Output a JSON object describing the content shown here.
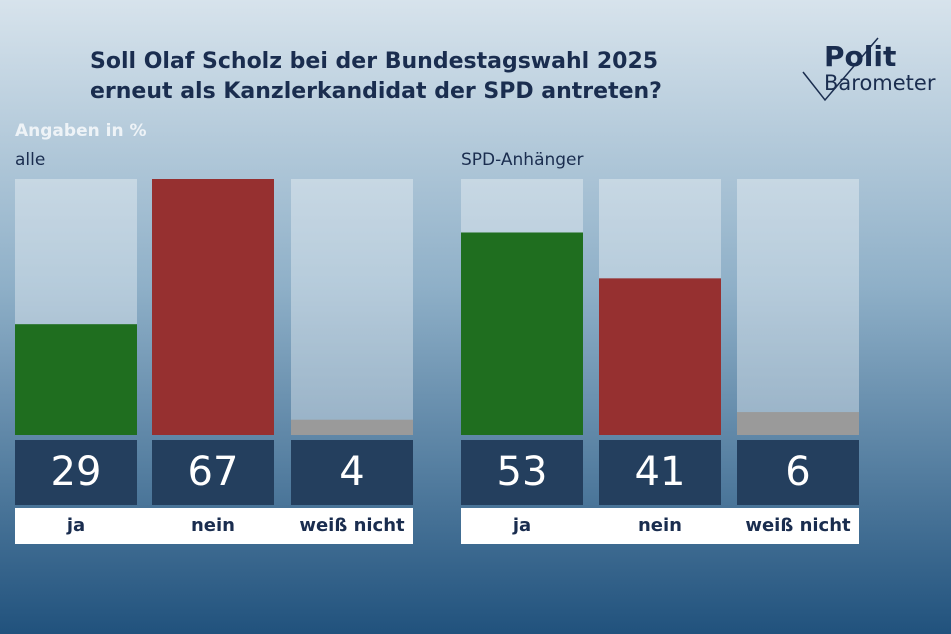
{
  "header": {
    "title": [
      "Soll Olaf Scholz bei der Bundestagswahl 2025",
      "erneut als Kanzlerkandidat der SPD antreten?"
    ],
    "note": "Angaben in %",
    "logo": [
      "Polit",
      "Barometer"
    ]
  },
  "chart_data": [
    {
      "type": "bar",
      "subtitle": "alle",
      "categories": [
        "ja",
        "nein",
        "weiß nicht"
      ],
      "values": [
        29,
        67,
        4
      ],
      "colors": [
        "#1f6e1f",
        "#963030",
        "#9a9a9a"
      ],
      "ylim": [
        0,
        67
      ]
    },
    {
      "type": "bar",
      "subtitle": "SPD-Anhänger",
      "categories": [
        "ja",
        "nein",
        "weiß nicht"
      ],
      "values": [
        53,
        41,
        6
      ],
      "colors": [
        "#1f6e1f",
        "#963030",
        "#9a9a9a"
      ],
      "ylim": [
        0,
        67
      ]
    }
  ]
}
